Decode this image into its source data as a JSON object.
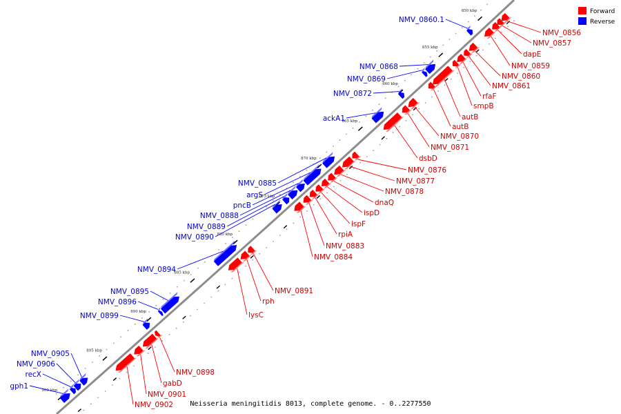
{
  "caption": "Neisseria meningitidis 8013, complete genome. - 0..2277550",
  "legend": {
    "forward": {
      "label": "Forward",
      "color": "#ff0000"
    },
    "reverse": {
      "label": "Reverse",
      "color": "#0000ff"
    }
  },
  "colors": {
    "backbone": "#8c8c8c",
    "forward_label": "#cc0000",
    "reverse_label": "#0000cc",
    "tick": "#000000",
    "dot": "#9a9a9a"
  },
  "ticks": [
    "850 kbp",
    "855 kbp",
    "860 kbp",
    "865 kbp",
    "870 kbp",
    "875 kbp",
    "880 kbp",
    "885 kbp",
    "890 kbp",
    "895 kbp",
    "900 kbp"
  ],
  "genes": [
    {
      "name": "NMV_0856",
      "strand": "forward"
    },
    {
      "name": "NMV_0857",
      "strand": "forward"
    },
    {
      "name": "dapE",
      "strand": "forward"
    },
    {
      "name": "NMV_0859",
      "strand": "forward"
    },
    {
      "name": "NMV_0860",
      "strand": "forward"
    },
    {
      "name": "NMV_0861",
      "strand": "forward"
    },
    {
      "name": "rfaF",
      "strand": "forward"
    },
    {
      "name": "smpB",
      "strand": "forward"
    },
    {
      "name": "autB",
      "strand": "forward"
    },
    {
      "name": "autB",
      "strand": "forward"
    },
    {
      "name": "NMV_0870",
      "strand": "forward"
    },
    {
      "name": "NMV_0871",
      "strand": "forward"
    },
    {
      "name": "dsbD",
      "strand": "forward"
    },
    {
      "name": "NMV_0876",
      "strand": "forward"
    },
    {
      "name": "NMV_0877",
      "strand": "forward"
    },
    {
      "name": "NMV_0878",
      "strand": "forward"
    },
    {
      "name": "dnaQ",
      "strand": "forward"
    },
    {
      "name": "ispD",
      "strand": "forward"
    },
    {
      "name": "ispF",
      "strand": "forward"
    },
    {
      "name": "rpiA",
      "strand": "forward"
    },
    {
      "name": "NMV_0883",
      "strand": "forward"
    },
    {
      "name": "NMV_0884",
      "strand": "forward"
    },
    {
      "name": "NMV_0891",
      "strand": "forward"
    },
    {
      "name": "rph",
      "strand": "forward"
    },
    {
      "name": "lysC",
      "strand": "forward"
    },
    {
      "name": "NMV_0898",
      "strand": "forward"
    },
    {
      "name": "gabD",
      "strand": "forward"
    },
    {
      "name": "NMV_0901",
      "strand": "forward"
    },
    {
      "name": "NMV_0902",
      "strand": "forward"
    },
    {
      "name": "NMV_0860.1",
      "strand": "reverse"
    },
    {
      "name": "NMV_0868",
      "strand": "reverse"
    },
    {
      "name": "NMV_0869",
      "strand": "reverse"
    },
    {
      "name": "NMV_0872",
      "strand": "reverse"
    },
    {
      "name": "ackA1",
      "strand": "reverse"
    },
    {
      "name": "NMV_0885",
      "strand": "reverse"
    },
    {
      "name": "argS",
      "strand": "reverse"
    },
    {
      "name": "pncB",
      "strand": "reverse"
    },
    {
      "name": "NMV_0888",
      "strand": "reverse"
    },
    {
      "name": "NMV_0889",
      "strand": "reverse"
    },
    {
      "name": "NMV_0890",
      "strand": "reverse"
    },
    {
      "name": "NMV_0894",
      "strand": "reverse"
    },
    {
      "name": "NMV_0895",
      "strand": "reverse"
    },
    {
      "name": "NMV_0896",
      "strand": "reverse"
    },
    {
      "name": "NMV_0899",
      "strand": "reverse"
    },
    {
      "name": "NMV_0905",
      "strand": "reverse"
    },
    {
      "name": "NMV_0906",
      "strand": "reverse"
    },
    {
      "name": "recX",
      "strand": "reverse"
    },
    {
      "name": "gph1",
      "strand": "reverse"
    }
  ]
}
